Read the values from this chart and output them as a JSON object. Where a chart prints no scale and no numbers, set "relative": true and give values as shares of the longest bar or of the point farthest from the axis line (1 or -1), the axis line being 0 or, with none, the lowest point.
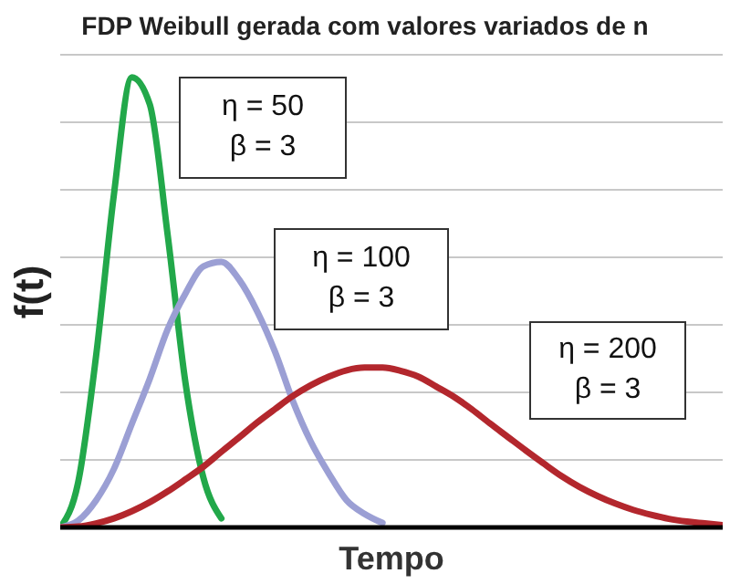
{
  "chart_data": {
    "type": "line",
    "title": "FDP Weibull gerada com valores variados de n",
    "xlabel": "Tempo",
    "ylabel": "f(t)",
    "relative": true,
    "grid": "y",
    "legend": false,
    "marker": "none",
    "line_style": "solid",
    "categories": [
      null,
      null,
      null,
      null,
      null,
      null,
      null,
      null,
      null,
      null,
      null,
      null,
      null,
      null,
      null,
      null,
      null,
      null,
      null,
      null,
      null,
      null,
      null,
      null,
      null,
      null,
      null,
      null,
      null,
      null,
      null,
      null,
      null,
      null,
      null,
      null,
      null,
      null
    ],
    "series": [
      {
        "color": "#22a84a",
        "values": [
          0,
          0.1,
          0.38,
          0.74,
          1,
          0.94,
          0.65,
          0.32,
          0.11,
          0.02,
          null,
          null,
          null,
          null,
          null,
          null,
          null,
          null,
          null,
          null,
          null,
          null,
          null,
          null,
          null,
          null,
          null,
          null,
          null,
          null,
          null,
          null,
          null,
          null,
          null,
          null,
          null,
          null
        ]
      },
      {
        "color": "#9b9fd4",
        "values": [
          0,
          0.015,
          0.06,
          0.13,
          0.23,
          0.33,
          0.44,
          0.52,
          0.58,
          0.59,
          0.55,
          0.48,
          0.39,
          0.28,
          0.19,
          0.12,
          0.06,
          0.03,
          0.01,
          null,
          null,
          null,
          null,
          null,
          null,
          null,
          null,
          null,
          null,
          null,
          null,
          null,
          null,
          null,
          null,
          null,
          null,
          null
        ]
      },
      {
        "color": "#b3272d",
        "values": [
          0,
          0.002,
          0.009,
          0.02,
          0.036,
          0.056,
          0.08,
          0.107,
          0.135,
          0.168,
          0.2,
          0.233,
          0.263,
          0.292,
          0.316,
          0.335,
          0.349,
          0.355,
          0.355,
          0.348,
          0.335,
          0.313,
          0.29,
          0.262,
          0.231,
          0.201,
          0.171,
          0.142,
          0.114,
          0.09,
          0.07,
          0.053,
          0.039,
          0.028,
          0.019,
          0.013,
          0.009,
          0.005
        ]
      }
    ],
    "annotations": [
      "η = 50\nβ = 3",
      "η = 100\nβ = 3",
      "η = 200\nβ = 3"
    ]
  }
}
